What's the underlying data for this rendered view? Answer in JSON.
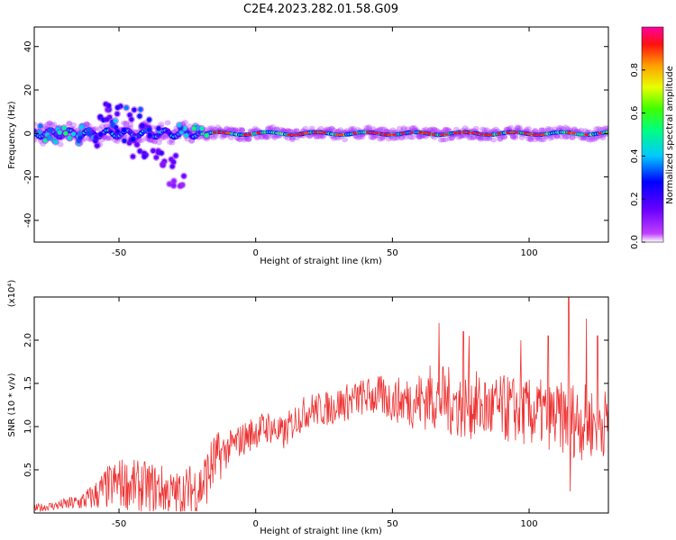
{
  "figure_title": "C2E4.2023.282.01.58.G09",
  "colors": {
    "snr_line": "#ee3333",
    "axis": "#000000",
    "background": "#ffffff"
  },
  "chart_data": [
    {
      "type": "heatmap",
      "xlabel": "Height of straight line (km)",
      "ylabel": "Frequency (Hz)",
      "xlim": [
        -81,
        129
      ],
      "ylim": [
        -50,
        49
      ],
      "x_ticks": [
        -50,
        0,
        50,
        100
      ],
      "y_ticks": [
        -40,
        -20,
        0,
        20,
        40
      ],
      "x_tick_labels": [
        "-50",
        "0",
        "50",
        "100"
      ],
      "y_tick_labels": [
        "-40",
        "-20",
        "0",
        "20",
        "40"
      ],
      "colorbar": {
        "label": "Normalized spectral amplitude",
        "range": [
          0,
          1
        ],
        "ticks": [
          0.0,
          0.2,
          0.4,
          0.6,
          0.8
        ],
        "tick_labels": [
          "0.0",
          "0.2",
          "0.4",
          "0.6",
          "0.8"
        ],
        "colormap": "rainbow (magenta-blue-cyan-green-yellow-red)"
      },
      "description_points": [
        {
          "x": -78,
          "y": 1,
          "v": 0.35
        },
        {
          "x": -74,
          "y": -1,
          "v": 0.45
        },
        {
          "x": -70,
          "y": 0,
          "v": 0.5
        },
        {
          "x": -66,
          "y": -2,
          "v": 0.4
        },
        {
          "x": -62,
          "y": 1,
          "v": 0.35
        },
        {
          "x": -58,
          "y": -3,
          "v": 0.3
        },
        {
          "x": -55,
          "y": 8,
          "v": 0.25
        },
        {
          "x": -52,
          "y": 12,
          "v": 0.2
        },
        {
          "x": -50,
          "y": 3,
          "v": 0.35
        },
        {
          "x": -47,
          "y": -5,
          "v": 0.25
        },
        {
          "x": -45,
          "y": 9,
          "v": 0.3
        },
        {
          "x": -42,
          "y": -8,
          "v": 0.2
        },
        {
          "x": -40,
          "y": 5,
          "v": 0.3
        },
        {
          "x": -37,
          "y": 1,
          "v": 0.35
        },
        {
          "x": -35,
          "y": -10,
          "v": 0.2
        },
        {
          "x": -32,
          "y": -13,
          "v": 0.15
        },
        {
          "x": -29,
          "y": -22,
          "v": 0.12
        },
        {
          "x": -25,
          "y": 2,
          "v": 0.4
        },
        {
          "x": -20,
          "y": 1,
          "v": 0.45
        }
      ]
    },
    {
      "type": "line",
      "xlabel": "Height of straight line (km)",
      "ylabel": "SNR (10 * v/v)",
      "y_multiplier_label": "(x10⁴)",
      "xlim": [
        -81,
        129
      ],
      "ylim": [
        0,
        2.5
      ],
      "x_ticks": [
        -50,
        0,
        50,
        100
      ],
      "y_ticks": [
        0.5,
        1.0,
        1.5,
        2.0
      ],
      "x_tick_labels": [
        "-50",
        "0",
        "50",
        "100"
      ],
      "y_tick_labels": [
        "0.5",
        "1.0",
        "1.5",
        "2.0"
      ],
      "series": [
        {
          "x": [
            -81,
            -75,
            -70,
            -65,
            -60,
            -55,
            -50,
            -45,
            -40,
            -35,
            -30,
            -25,
            -20,
            -15,
            -10,
            -5,
            0,
            5,
            10,
            15,
            20,
            25,
            30,
            35,
            40,
            45,
            50,
            55,
            60,
            65,
            70,
            75,
            80,
            85,
            90,
            95,
            100,
            105,
            110,
            115,
            120,
            125,
            129
          ],
          "mean": [
            0.05,
            0.08,
            0.1,
            0.12,
            0.18,
            0.28,
            0.35,
            0.32,
            0.3,
            0.28,
            0.22,
            0.25,
            0.3,
            0.6,
            0.75,
            0.85,
            0.95,
            1.0,
            0.9,
            1.1,
            1.2,
            1.2,
            1.25,
            1.3,
            1.35,
            1.35,
            1.3,
            1.3,
            1.3,
            1.35,
            1.3,
            1.25,
            1.25,
            1.2,
            1.2,
            1.2,
            1.15,
            1.15,
            1.1,
            1.1,
            1.05,
            1.05,
            1.05
          ],
          "spread": [
            0.05,
            0.05,
            0.07,
            0.1,
            0.15,
            0.25,
            0.3,
            0.3,
            0.3,
            0.3,
            0.25,
            0.3,
            0.35,
            0.35,
            0.2,
            0.2,
            0.2,
            0.2,
            0.2,
            0.2,
            0.2,
            0.2,
            0.22,
            0.22,
            0.22,
            0.25,
            0.25,
            0.3,
            0.35,
            0.4,
            0.4,
            0.4,
            0.4,
            0.4,
            0.4,
            0.4,
            0.4,
            0.4,
            0.4,
            0.45,
            0.45,
            0.4,
            0.4
          ]
        }
      ],
      "peaks": [
        {
          "x": 67,
          "y": 2.2
        },
        {
          "x": 76,
          "y": 2.1
        },
        {
          "x": 78,
          "y": 2.05
        },
        {
          "x": 97,
          "y": 2.0
        },
        {
          "x": 107,
          "y": 2.05
        },
        {
          "x": 114.5,
          "y": 2.5
        },
        {
          "x": 115,
          "y": 0.25
        },
        {
          "x": 121,
          "y": 2.25
        },
        {
          "x": 125,
          "y": 2.05
        }
      ]
    }
  ]
}
